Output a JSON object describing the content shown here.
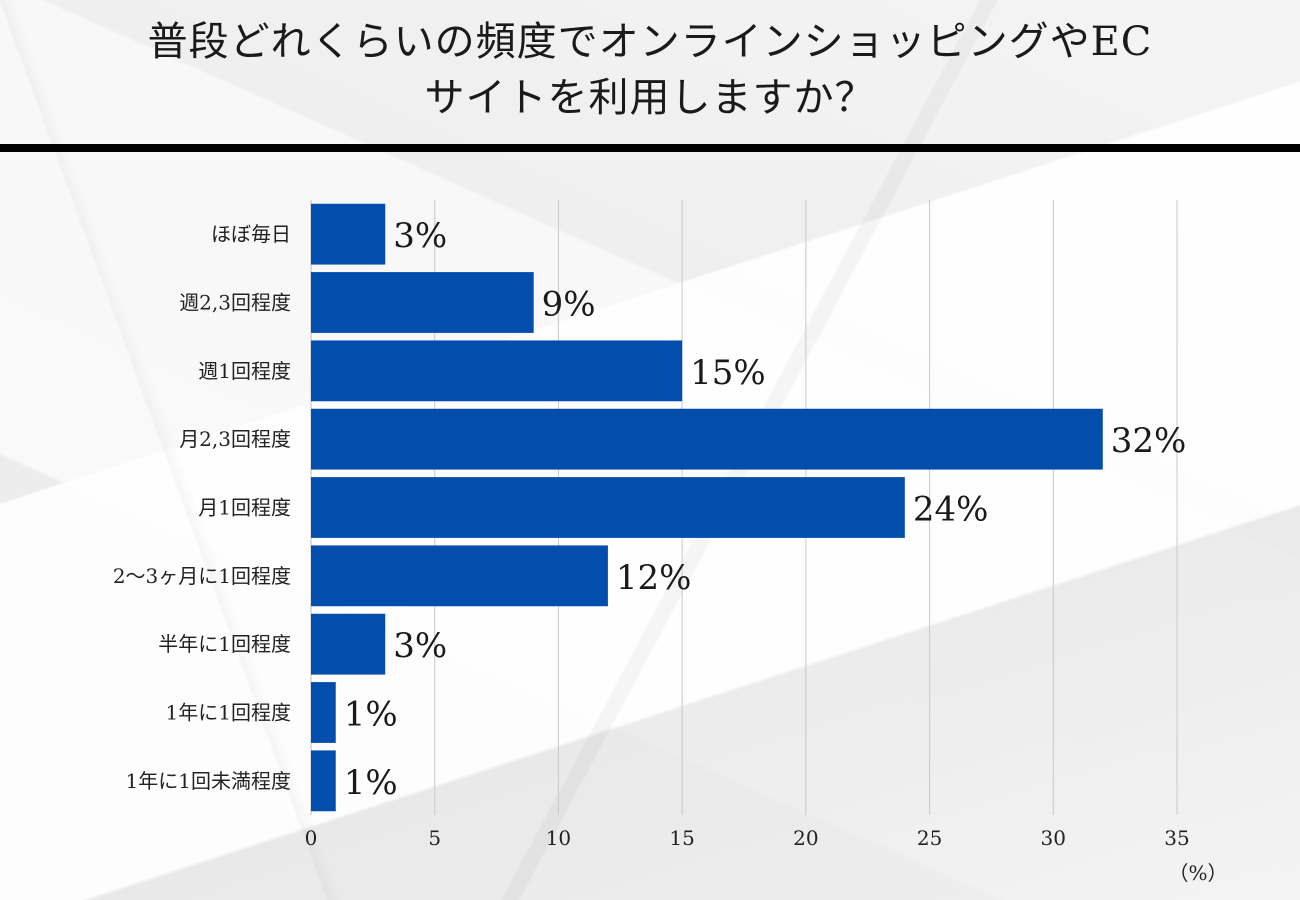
{
  "chart_data": {
    "type": "bar",
    "orientation": "horizontal",
    "title_lines": [
      "普段どれくらいの頻度でオンラインショッピングやEC",
      "サイトを利用しますか？"
    ],
    "categories": [
      "ほぼ毎日",
      "週2,3回程度",
      "週1回程度",
      "月2,3回程度",
      "月1回程度",
      "2〜3ヶ月に1回程度",
      "半年に1回程度",
      "1年に1回程度",
      "1年に1回未満程度"
    ],
    "values": [
      3,
      9,
      15,
      32,
      24,
      12,
      3,
      1,
      1
    ],
    "value_labels": [
      "3%",
      "9%",
      "15%",
      "32%",
      "24%",
      "12%",
      "3%",
      "1%",
      "1%"
    ],
    "xlim": [
      0,
      35
    ],
    "xticks": [
      0,
      5,
      10,
      15,
      20,
      25,
      30,
      35
    ],
    "xtick_labels": [
      "0",
      "5",
      "10",
      "15",
      "20",
      "25",
      "30",
      "35"
    ],
    "xunit": "（%）",
    "grid": "vertical",
    "bar_color": "#034dac"
  }
}
